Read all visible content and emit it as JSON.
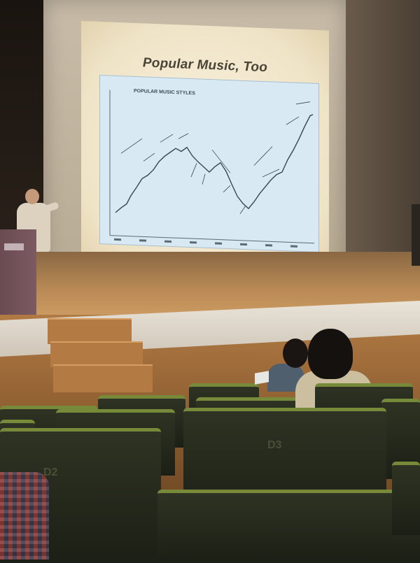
{
  "slide": {
    "title": "Popular Music, Too",
    "chart_heading": "POPULAR MUSIC STYLES"
  },
  "seats": {
    "label_left": "D2",
    "label_right": "D3"
  },
  "colors": {
    "screen": "#fbf4e2",
    "chart_background": "#d9e9f3",
    "seat_trim": "#778a3a",
    "stage_wood": "#b98a55"
  }
}
